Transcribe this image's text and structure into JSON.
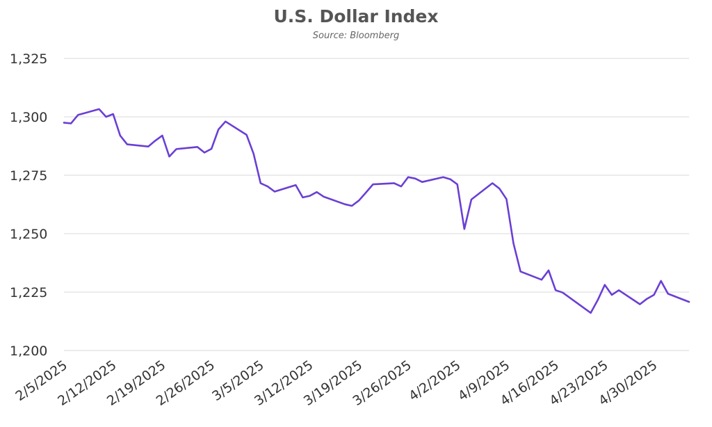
{
  "chart_data": {
    "type": "line",
    "title": "U.S. Dollar Index",
    "subtitle": "Source: Bloomberg",
    "xlabel": "",
    "ylabel": "",
    "ylim": [
      1200,
      1325
    ],
    "yticks": [
      1200,
      1225,
      1250,
      1275,
      1300,
      1325
    ],
    "ytick_labels": [
      "1,200",
      "1,225",
      "1,250",
      "1,275",
      "1,300",
      "1,325"
    ],
    "xlim": [
      "2025-02-05",
      "2025-05-05"
    ],
    "x_tick_dates": [
      "2025-02-05",
      "2025-02-12",
      "2025-02-19",
      "2025-02-26",
      "2025-03-05",
      "2025-03-12",
      "2025-03-19",
      "2025-03-26",
      "2025-04-02",
      "2025-04-09",
      "2025-04-16",
      "2025-04-23",
      "2025-04-30"
    ],
    "x_tick_labels": [
      "2/5/2025",
      "2/12/2025",
      "2/19/2025",
      "2/26/2025",
      "3/5/2025",
      "3/12/2025",
      "3/19/2025",
      "3/26/2025",
      "4/2/2025",
      "4/9/2025",
      "4/16/2025",
      "4/23/2025",
      "4/30/2025"
    ],
    "grid": true,
    "line_color": "#6a3fd4",
    "series": [
      {
        "x": [
          "2025-02-05",
          "2025-02-06",
          "2025-02-07",
          "2025-02-10",
          "2025-02-11",
          "2025-02-12",
          "2025-02-13",
          "2025-02-14",
          "2025-02-17",
          "2025-02-18",
          "2025-02-19",
          "2025-02-20",
          "2025-02-21",
          "2025-02-24",
          "2025-02-25",
          "2025-02-26",
          "2025-02-27",
          "2025-02-28",
          "2025-03-03",
          "2025-03-04",
          "2025-03-05",
          "2025-03-06",
          "2025-03-07",
          "2025-03-10",
          "2025-03-11",
          "2025-03-12",
          "2025-03-13",
          "2025-03-14",
          "2025-03-17",
          "2025-03-18",
          "2025-03-19",
          "2025-03-20",
          "2025-03-21",
          "2025-03-24",
          "2025-03-25",
          "2025-03-26",
          "2025-03-27",
          "2025-03-28",
          "2025-03-31",
          "2025-04-01",
          "2025-04-02",
          "2025-04-03",
          "2025-04-04",
          "2025-04-07",
          "2025-04-08",
          "2025-04-09",
          "2025-04-10",
          "2025-04-11",
          "2025-04-14",
          "2025-04-15",
          "2025-04-16",
          "2025-04-17",
          "2025-04-21",
          "2025-04-22",
          "2025-04-23",
          "2025-04-24",
          "2025-04-25",
          "2025-04-28",
          "2025-04-29",
          "2025-04-30",
          "2025-05-01",
          "2025-05-02",
          "2025-05-05"
        ],
        "values": [
          1297.5,
          1297.2,
          1300.8,
          1303.3,
          1300.0,
          1301.2,
          1292.0,
          1288.2,
          1287.3,
          1289.8,
          1292.0,
          1283.0,
          1286.2,
          1287.1,
          1284.7,
          1286.3,
          1294.6,
          1298.0,
          1292.3,
          1284.2,
          1271.6,
          1270.2,
          1268.0,
          1270.8,
          1265.5,
          1266.2,
          1267.8,
          1265.8,
          1262.6,
          1261.9,
          1264.2,
          1267.6,
          1271.1,
          1271.6,
          1270.2,
          1274.2,
          1273.6,
          1272.1,
          1274.2,
          1273.3,
          1271.1,
          1252.0,
          1264.6,
          1271.6,
          1269.3,
          1264.8,
          1245.8,
          1233.8,
          1230.3,
          1234.3,
          1225.8,
          1224.8,
          1216.1,
          1221.6,
          1228.1,
          1223.8,
          1225.8,
          1219.8,
          1222.1,
          1223.8,
          1229.8,
          1224.3,
          1220.8
        ]
      }
    ]
  }
}
